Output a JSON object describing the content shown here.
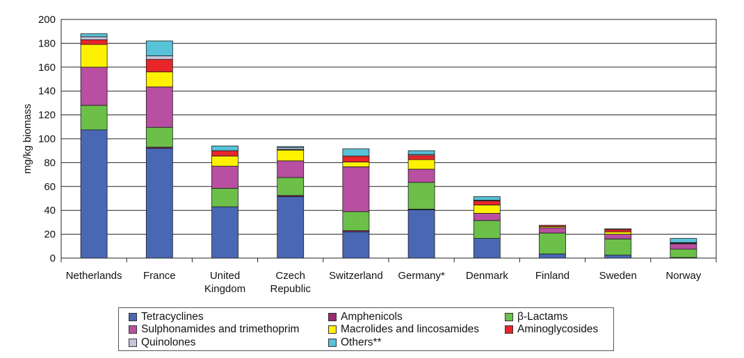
{
  "chart_data": {
    "type": "bar",
    "stacked": true,
    "title": "",
    "xlabel": "",
    "ylabel": "mg/kg biomass",
    "ylim": [
      0,
      200
    ],
    "yticks": [
      "0",
      "20",
      "40",
      "60",
      "80",
      "100",
      "120",
      "140",
      "160",
      "180",
      "200"
    ],
    "grid": true,
    "legend_position": "bottom",
    "categories": [
      [
        "Netherlands"
      ],
      [
        "France"
      ],
      [
        "United",
        "Kingdom"
      ],
      [
        "Czech",
        "Republic"
      ],
      [
        "Switzerland"
      ],
      [
        "Germany*"
      ],
      [
        "Denmark"
      ],
      [
        "Finland"
      ],
      [
        "Sweden"
      ],
      [
        "Norway"
      ]
    ],
    "series": [
      {
        "name": "Tetracyclines",
        "color": "#4a67b4",
        "values": [
          107.5,
          92,
          43,
          51.5,
          22,
          40.5,
          16.5,
          3.5,
          2.5,
          0.5
        ]
      },
      {
        "name": "Amphenicols",
        "color": "#9b2a6e",
        "values": [
          0,
          1,
          0,
          1,
          1,
          0.5,
          0,
          0,
          0,
          0
        ]
      },
      {
        "name": "β-Lactams",
        "color": "#6cc04a",
        "values": [
          20.5,
          16.5,
          15.5,
          15,
          16,
          22.5,
          15,
          17.5,
          13.5,
          7
        ]
      },
      {
        "name": "Sulphonamides and trimethoprim",
        "color": "#b84fa1",
        "values": [
          32,
          34,
          18.5,
          14,
          37.5,
          11,
          6,
          4.5,
          4,
          4.5
        ]
      },
      {
        "name": "Macrolides and lincosamides",
        "color": "#fff200",
        "values": [
          19,
          12.5,
          8.5,
          9,
          4,
          8,
          7,
          1,
          2,
          0
        ]
      },
      {
        "name": "Aminoglycosides",
        "color": "#e8262a",
        "values": [
          4,
          10.5,
          4.5,
          0.5,
          5,
          3.5,
          3.5,
          1,
          2,
          0.5
        ]
      },
      {
        "name": "Quinolones",
        "color": "#c8c3dd",
        "values": [
          2.5,
          3,
          0,
          1.5,
          0,
          1,
          0.5,
          0,
          0.5,
          0.5
        ]
      },
      {
        "name": "Others**",
        "color": "#57c2d8",
        "values": [
          2.5,
          12.5,
          4,
          1,
          6,
          3,
          3,
          0,
          0,
          3.5
        ]
      }
    ]
  },
  "legend": {
    "items": [
      {
        "label": "Tetracyclines",
        "color": "#4a67b4"
      },
      {
        "label": "Amphenicols",
        "color": "#9b2a6e"
      },
      {
        "label": "β-Lactams",
        "color": "#6cc04a"
      },
      {
        "label": "Sulphonamides and trimethoprim",
        "color": "#b84fa1"
      },
      {
        "label": "Macrolides and lincosamides",
        "color": "#fff200"
      },
      {
        "label": "Aminoglycosides",
        "color": "#e8262a"
      },
      {
        "label": "Quinolones",
        "color": "#c8c3dd"
      },
      {
        "label": "Others**",
        "color": "#57c2d8"
      }
    ]
  }
}
